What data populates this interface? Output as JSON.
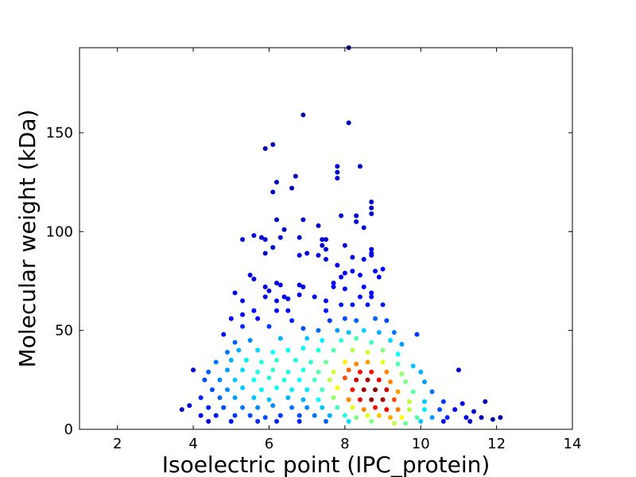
{
  "chart_data": {
    "type": "scatter",
    "title": "",
    "xlabel": "Isoelectric point (IPC_protein)",
    "ylabel": "Molecular weight (kDa)",
    "xlim": [
      1,
      14
    ],
    "ylim": [
      0,
      193
    ],
    "xticks": [
      2,
      4,
      6,
      8,
      10,
      12,
      14
    ],
    "yticks": [
      0,
      50,
      100,
      150
    ],
    "xtick_labels": [
      "2",
      "4",
      "6",
      "8",
      "10",
      "12",
      "14"
    ],
    "ytick_labels": [
      "0",
      "50",
      "100",
      "150"
    ],
    "grid": false,
    "legend": "none",
    "color_encoding": "point density (jet colormap: blue = low, red = high)",
    "colors": {
      "low_density": "#00008f",
      "mid_density": "#00ffff",
      "high_density": "#ff0000",
      "max_density": "#800000"
    },
    "points": [
      [
        8.1,
        193,
        0.02
      ],
      [
        6.9,
        159,
        0.05
      ],
      [
        8.1,
        155,
        0.06
      ],
      [
        6.1,
        144,
        0.05
      ],
      [
        5.9,
        142,
        0.05
      ],
      [
        7.8,
        133,
        0.08
      ],
      [
        8.4,
        133,
        0.08
      ],
      [
        7.8,
        130,
        0.08
      ],
      [
        7.8,
        127,
        0.08
      ],
      [
        6.7,
        128,
        0.06
      ],
      [
        6.2,
        125,
        0.06
      ],
      [
        6.6,
        122,
        0.06
      ],
      [
        6.1,
        120,
        0.06
      ],
      [
        8.7,
        115,
        0.09
      ],
      [
        8.7,
        112,
        0.09
      ],
      [
        8.3,
        108,
        0.09
      ],
      [
        7.9,
        108,
        0.09
      ],
      [
        8.7,
        109,
        0.09
      ],
      [
        8.3,
        105,
        0.09
      ],
      [
        6.2,
        106,
        0.07
      ],
      [
        6.9,
        106,
        0.07
      ],
      [
        7.3,
        103,
        0.08
      ],
      [
        6.4,
        101,
        0.07
      ],
      [
        8.5,
        102,
        0.1
      ],
      [
        5.6,
        98,
        0.08
      ],
      [
        5.3,
        96,
        0.08
      ],
      [
        5.8,
        97,
        0.08
      ],
      [
        5.9,
        96,
        0.08
      ],
      [
        6.3,
        97,
        0.08
      ],
      [
        6.8,
        97,
        0.08
      ],
      [
        7.4,
        96,
        0.09
      ],
      [
        7.5,
        96,
        0.09
      ],
      [
        8.0,
        93,
        0.1
      ],
      [
        7.4,
        93,
        0.09
      ],
      [
        7.5,
        91,
        0.09
      ],
      [
        6.1,
        92,
        0.08
      ],
      [
        8.7,
        91,
        0.1
      ],
      [
        8.7,
        88,
        0.1
      ],
      [
        8.7,
        89,
        0.1
      ],
      [
        6.8,
        88,
        0.09
      ],
      [
        7.0,
        89,
        0.09
      ],
      [
        5.9,
        89,
        0.09
      ],
      [
        8.2,
        87,
        0.11
      ],
      [
        7.5,
        86,
        0.1
      ],
      [
        7.3,
        88,
        0.1
      ],
      [
        8.5,
        86,
        0.11
      ],
      [
        7.8,
        83,
        0.11
      ],
      [
        9.0,
        81,
        0.12
      ],
      [
        8.8,
        80,
        0.12
      ],
      [
        8.2,
        80,
        0.12
      ],
      [
        8.0,
        79,
        0.12
      ],
      [
        7.9,
        77,
        0.12
      ],
      [
        8.4,
        78,
        0.12
      ],
      [
        8.9,
        77,
        0.12
      ],
      [
        5.5,
        78,
        0.1
      ],
      [
        5.6,
        76,
        0.1
      ],
      [
        7.7,
        74,
        0.12
      ],
      [
        6.2,
        74,
        0.1
      ],
      [
        6.3,
        73,
        0.1
      ],
      [
        6.8,
        73,
        0.1
      ],
      [
        6.9,
        72,
        0.1
      ],
      [
        7.7,
        72,
        0.12
      ],
      [
        8.5,
        72,
        0.13
      ],
      [
        8.0,
        71,
        0.13
      ],
      [
        5.9,
        72,
        0.1
      ],
      [
        6.0,
        70,
        0.1
      ],
      [
        5.1,
        69,
        0.1
      ],
      [
        8.7,
        69,
        0.13
      ],
      [
        8.7,
        67,
        0.13
      ],
      [
        6.5,
        66,
        0.11
      ],
      [
        7.2,
        67,
        0.12
      ],
      [
        7.5,
        65,
        0.12
      ],
      [
        6.4,
        67,
        0.11
      ],
      [
        6.8,
        68,
        0.11
      ],
      [
        5.9,
        67,
        0.11
      ],
      [
        6.2,
        65,
        0.11
      ],
      [
        5.3,
        65,
        0.11
      ],
      [
        8.4,
        67,
        0.14
      ],
      [
        9.0,
        63,
        0.15
      ],
      [
        8.6,
        63,
        0.15
      ],
      [
        8.2,
        63,
        0.15
      ],
      [
        7.9,
        63,
        0.15
      ],
      [
        7.5,
        60,
        0.15
      ],
      [
        6.5,
        60,
        0.13
      ],
      [
        6.2,
        60,
        0.13
      ],
      [
        5.6,
        60,
        0.13
      ],
      [
        5.3,
        58,
        0.13
      ],
      [
        5.0,
        56,
        0.12
      ],
      [
        5.7,
        56,
        0.14
      ],
      [
        6.6,
        55,
        0.15
      ],
      [
        7.6,
        55,
        0.18
      ],
      [
        8.0,
        56,
        0.2
      ],
      [
        8.3,
        55,
        0.22
      ],
      [
        8.8,
        56,
        0.22
      ],
      [
        9.1,
        55,
        0.2
      ],
      [
        9.9,
        48,
        0.18
      ],
      [
        4.8,
        48,
        0.14
      ],
      [
        5.3,
        52,
        0.17
      ],
      [
        6.0,
        52,
        0.18
      ],
      [
        6.9,
        51,
        0.2
      ],
      [
        7.3,
        50,
        0.23
      ],
      [
        7.8,
        50,
        0.28
      ],
      [
        8.1,
        49,
        0.32
      ],
      [
        8.5,
        50,
        0.33
      ],
      [
        8.9,
        49,
        0.3
      ],
      [
        9.3,
        49,
        0.24
      ],
      [
        5.1,
        44,
        0.22
      ],
      [
        5.5,
        45,
        0.26
      ],
      [
        6.3,
        46,
        0.3
      ],
      [
        7.0,
        46,
        0.32
      ],
      [
        7.4,
        45,
        0.36
      ],
      [
        7.9,
        45,
        0.42
      ],
      [
        8.3,
        46,
        0.45
      ],
      [
        8.7,
        44,
        0.44
      ],
      [
        9.2,
        45,
        0.34
      ],
      [
        9.5,
        43,
        0.28
      ],
      [
        4.9,
        39,
        0.24
      ],
      [
        5.2,
        40,
        0.3
      ],
      [
        5.7,
        40,
        0.34
      ],
      [
        6.1,
        39,
        0.38
      ],
      [
        6.5,
        40,
        0.38
      ],
      [
        6.9,
        41,
        0.36
      ],
      [
        7.3,
        40,
        0.4
      ],
      [
        7.7,
        40,
        0.46
      ],
      [
        8.2,
        40,
        0.55
      ],
      [
        8.6,
        39,
        0.58
      ],
      [
        9.0,
        40,
        0.5
      ],
      [
        9.4,
        38,
        0.38
      ],
      [
        4.6,
        34,
        0.24
      ],
      [
        5.0,
        35,
        0.3
      ],
      [
        5.4,
        35,
        0.36
      ],
      [
        5.8,
        34,
        0.4
      ],
      [
        6.2,
        35,
        0.42
      ],
      [
        6.7,
        35,
        0.4
      ],
      [
        7.1,
        34,
        0.42
      ],
      [
        7.5,
        34,
        0.48
      ],
      [
        8.0,
        34,
        0.64
      ],
      [
        8.3,
        33,
        0.74
      ],
      [
        8.6,
        34,
        0.72
      ],
      [
        9.0,
        34,
        0.6
      ],
      [
        9.4,
        33,
        0.45
      ],
      [
        9.8,
        32,
        0.32
      ],
      [
        4.4,
        29,
        0.22
      ],
      [
        4.9,
        30,
        0.28
      ],
      [
        5.3,
        30,
        0.34
      ],
      [
        5.7,
        29,
        0.4
      ],
      [
        6.1,
        30,
        0.42
      ],
      [
        6.5,
        29,
        0.4
      ],
      [
        6.9,
        30,
        0.4
      ],
      [
        7.3,
        29,
        0.46
      ],
      [
        7.7,
        29,
        0.58
      ],
      [
        8.1,
        30,
        0.78
      ],
      [
        8.4,
        29,
        0.86
      ],
      [
        8.7,
        29,
        0.86
      ],
      [
        9.1,
        29,
        0.74
      ],
      [
        9.5,
        28,
        0.52
      ],
      [
        10.0,
        29,
        0.3
      ],
      [
        11.0,
        30,
        0.08
      ],
      [
        4.0,
        30,
        0.08
      ],
      [
        4.3,
        25,
        0.2
      ],
      [
        4.7,
        25,
        0.26
      ],
      [
        5.1,
        25,
        0.32
      ],
      [
        5.6,
        25,
        0.38
      ],
      [
        6.0,
        26,
        0.42
      ],
      [
        6.4,
        25,
        0.4
      ],
      [
        6.8,
        25,
        0.38
      ],
      [
        7.2,
        25,
        0.44
      ],
      [
        7.6,
        25,
        0.56
      ],
      [
        8.0,
        26,
        0.8
      ],
      [
        8.3,
        25,
        0.92
      ],
      [
        8.6,
        25,
        0.96
      ],
      [
        8.9,
        25,
        0.9
      ],
      [
        9.2,
        24,
        0.74
      ],
      [
        9.6,
        24,
        0.5
      ],
      [
        10.1,
        24,
        0.28
      ],
      [
        4.5,
        20,
        0.2
      ],
      [
        4.9,
        20,
        0.26
      ],
      [
        5.3,
        21,
        0.32
      ],
      [
        5.8,
        20,
        0.36
      ],
      [
        6.2,
        21,
        0.38
      ],
      [
        6.6,
        20,
        0.36
      ],
      [
        7.0,
        20,
        0.36
      ],
      [
        7.4,
        20,
        0.44
      ],
      [
        7.8,
        21,
        0.62
      ],
      [
        8.2,
        20,
        0.86
      ],
      [
        8.5,
        20,
        0.96
      ],
      [
        8.8,
        20,
        1.0
      ],
      [
        9.1,
        20,
        0.92
      ],
      [
        9.4,
        19,
        0.72
      ],
      [
        9.8,
        19,
        0.46
      ],
      [
        10.3,
        19,
        0.24
      ],
      [
        4.2,
        16,
        0.16
      ],
      [
        4.7,
        16,
        0.22
      ],
      [
        5.1,
        16,
        0.28
      ],
      [
        5.6,
        16,
        0.32
      ],
      [
        6.0,
        15,
        0.32
      ],
      [
        6.5,
        16,
        0.3
      ],
      [
        6.9,
        15,
        0.3
      ],
      [
        7.3,
        15,
        0.38
      ],
      [
        7.7,
        16,
        0.52
      ],
      [
        8.1,
        15,
        0.74
      ],
      [
        8.4,
        15,
        0.9
      ],
      [
        8.7,
        15,
        0.98
      ],
      [
        9.0,
        15,
        0.96
      ],
      [
        9.3,
        15,
        0.8
      ],
      [
        9.7,
        14,
        0.56
      ],
      [
        10.1,
        14,
        0.32
      ],
      [
        10.6,
        14,
        0.18
      ],
      [
        11.1,
        13,
        0.1
      ],
      [
        11.7,
        14,
        0.06
      ],
      [
        3.9,
        12,
        0.1
      ],
      [
        4.4,
        11,
        0.16
      ],
      [
        4.8,
        11,
        0.2
      ],
      [
        5.3,
        11,
        0.24
      ],
      [
        5.7,
        11,
        0.26
      ],
      [
        6.1,
        12,
        0.26
      ],
      [
        6.6,
        11,
        0.24
      ],
      [
        7.0,
        11,
        0.26
      ],
      [
        7.4,
        11,
        0.32
      ],
      [
        7.8,
        11,
        0.44
      ],
      [
        8.2,
        11,
        0.6
      ],
      [
        8.5,
        10,
        0.74
      ],
      [
        8.8,
        11,
        0.86
      ],
      [
        9.1,
        10,
        0.88
      ],
      [
        9.4,
        10,
        0.76
      ],
      [
        9.7,
        10,
        0.56
      ],
      [
        10.1,
        10,
        0.36
      ],
      [
        10.5,
        10,
        0.2
      ],
      [
        10.9,
        10,
        0.12
      ],
      [
        11.4,
        9,
        0.08
      ],
      [
        3.7,
        10,
        0.06
      ],
      [
        4.2,
        7,
        0.12
      ],
      [
        4.6,
        7,
        0.14
      ],
      [
        5.1,
        7,
        0.18
      ],
      [
        5.5,
        7,
        0.2
      ],
      [
        5.9,
        6,
        0.2
      ],
      [
        6.3,
        7,
        0.18
      ],
      [
        6.8,
        7,
        0.2
      ],
      [
        7.2,
        7,
        0.24
      ],
      [
        7.6,
        7,
        0.3
      ],
      [
        8.0,
        7,
        0.4
      ],
      [
        8.3,
        6,
        0.5
      ],
      [
        8.6,
        7,
        0.6
      ],
      [
        8.9,
        7,
        0.68
      ],
      [
        9.2,
        6,
        0.7
      ],
      [
        9.5,
        6,
        0.62
      ],
      [
        9.9,
        6,
        0.46
      ],
      [
        10.3,
        6,
        0.28
      ],
      [
        10.7,
        6,
        0.16
      ],
      [
        11.2,
        6,
        0.1
      ],
      [
        11.6,
        6,
        0.06
      ],
      [
        12.1,
        6,
        0.04
      ],
      [
        4.4,
        4,
        0.1
      ],
      [
        5.0,
        4,
        0.14
      ],
      [
        5.7,
        4,
        0.16
      ],
      [
        6.2,
        4,
        0.16
      ],
      [
        6.8,
        4,
        0.16
      ],
      [
        7.5,
        4,
        0.22
      ],
      [
        8.1,
        4,
        0.34
      ],
      [
        8.7,
        4,
        0.5
      ],
      [
        9.3,
        3,
        0.56
      ],
      [
        9.6,
        3,
        0.48
      ],
      [
        10.0,
        4,
        0.32
      ],
      [
        10.6,
        4,
        0.14
      ],
      [
        11.3,
        4,
        0.08
      ],
      [
        11.9,
        5,
        0.05
      ]
    ]
  }
}
